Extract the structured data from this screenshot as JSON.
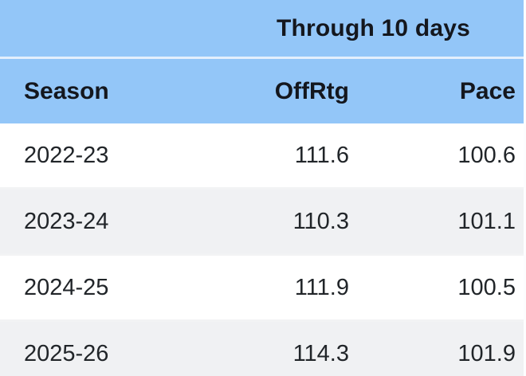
{
  "colors": {
    "header_bg": "#93C6F8",
    "header_divider": "#E4EFFC",
    "row_bg": "#FFFFFF",
    "row_alt_bg": "#F0F1F3",
    "row_divider": "#F2F3F4",
    "header_text": "#14171E",
    "data_text": "#212529"
  },
  "chart_data": {
    "type": "table",
    "title": "Through 10 days",
    "columns": [
      "Season",
      "OffRtg",
      "Pace"
    ],
    "rows": [
      [
        "2022-23",
        "111.6",
        "100.6"
      ],
      [
        "2023-24",
        "110.3",
        "101.1"
      ],
      [
        "2024-25",
        "111.9",
        "100.5"
      ],
      [
        "2025-26",
        "114.3",
        "101.9"
      ]
    ],
    "layout_hints": {
      "column_alignment": [
        "left",
        "right",
        "right"
      ],
      "group_header_span": "OffRtg+Pace",
      "striped": true
    }
  }
}
